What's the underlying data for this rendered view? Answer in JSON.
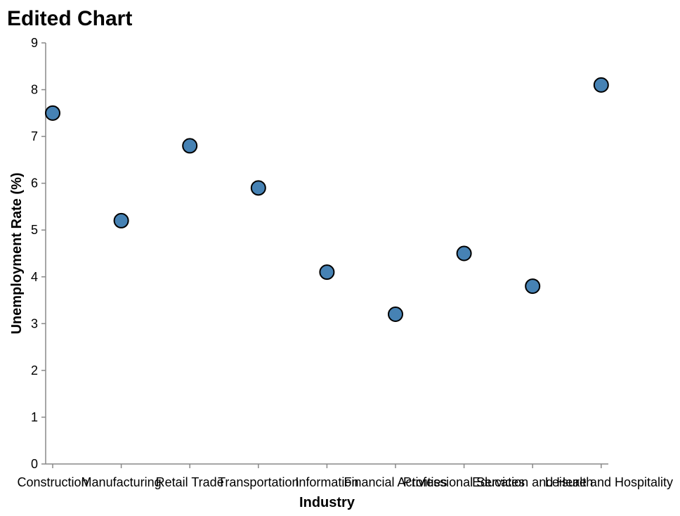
{
  "chart_data": {
    "type": "scatter",
    "title": "Edited Chart",
    "xlabel": "Industry",
    "ylabel": "Unemployment Rate (%)",
    "categories": [
      "Construction",
      "Manufacturing",
      "Retail Trade",
      "Transportation",
      "Information",
      "Financial Activities",
      "Professional Services",
      "Education and Health",
      "Leisure and Hospitality"
    ],
    "values": [
      7.5,
      5.2,
      6.8,
      5.9,
      4.1,
      3.2,
      4.5,
      3.8,
      8.1
    ],
    "ylim": [
      0,
      9
    ],
    "yticks": [
      0,
      1,
      2,
      3,
      4,
      5,
      6,
      7,
      8,
      9
    ],
    "grid": false,
    "colors": {
      "point_fill": "#4682b4",
      "point_stroke": "#000000",
      "axis": "#888888"
    }
  }
}
